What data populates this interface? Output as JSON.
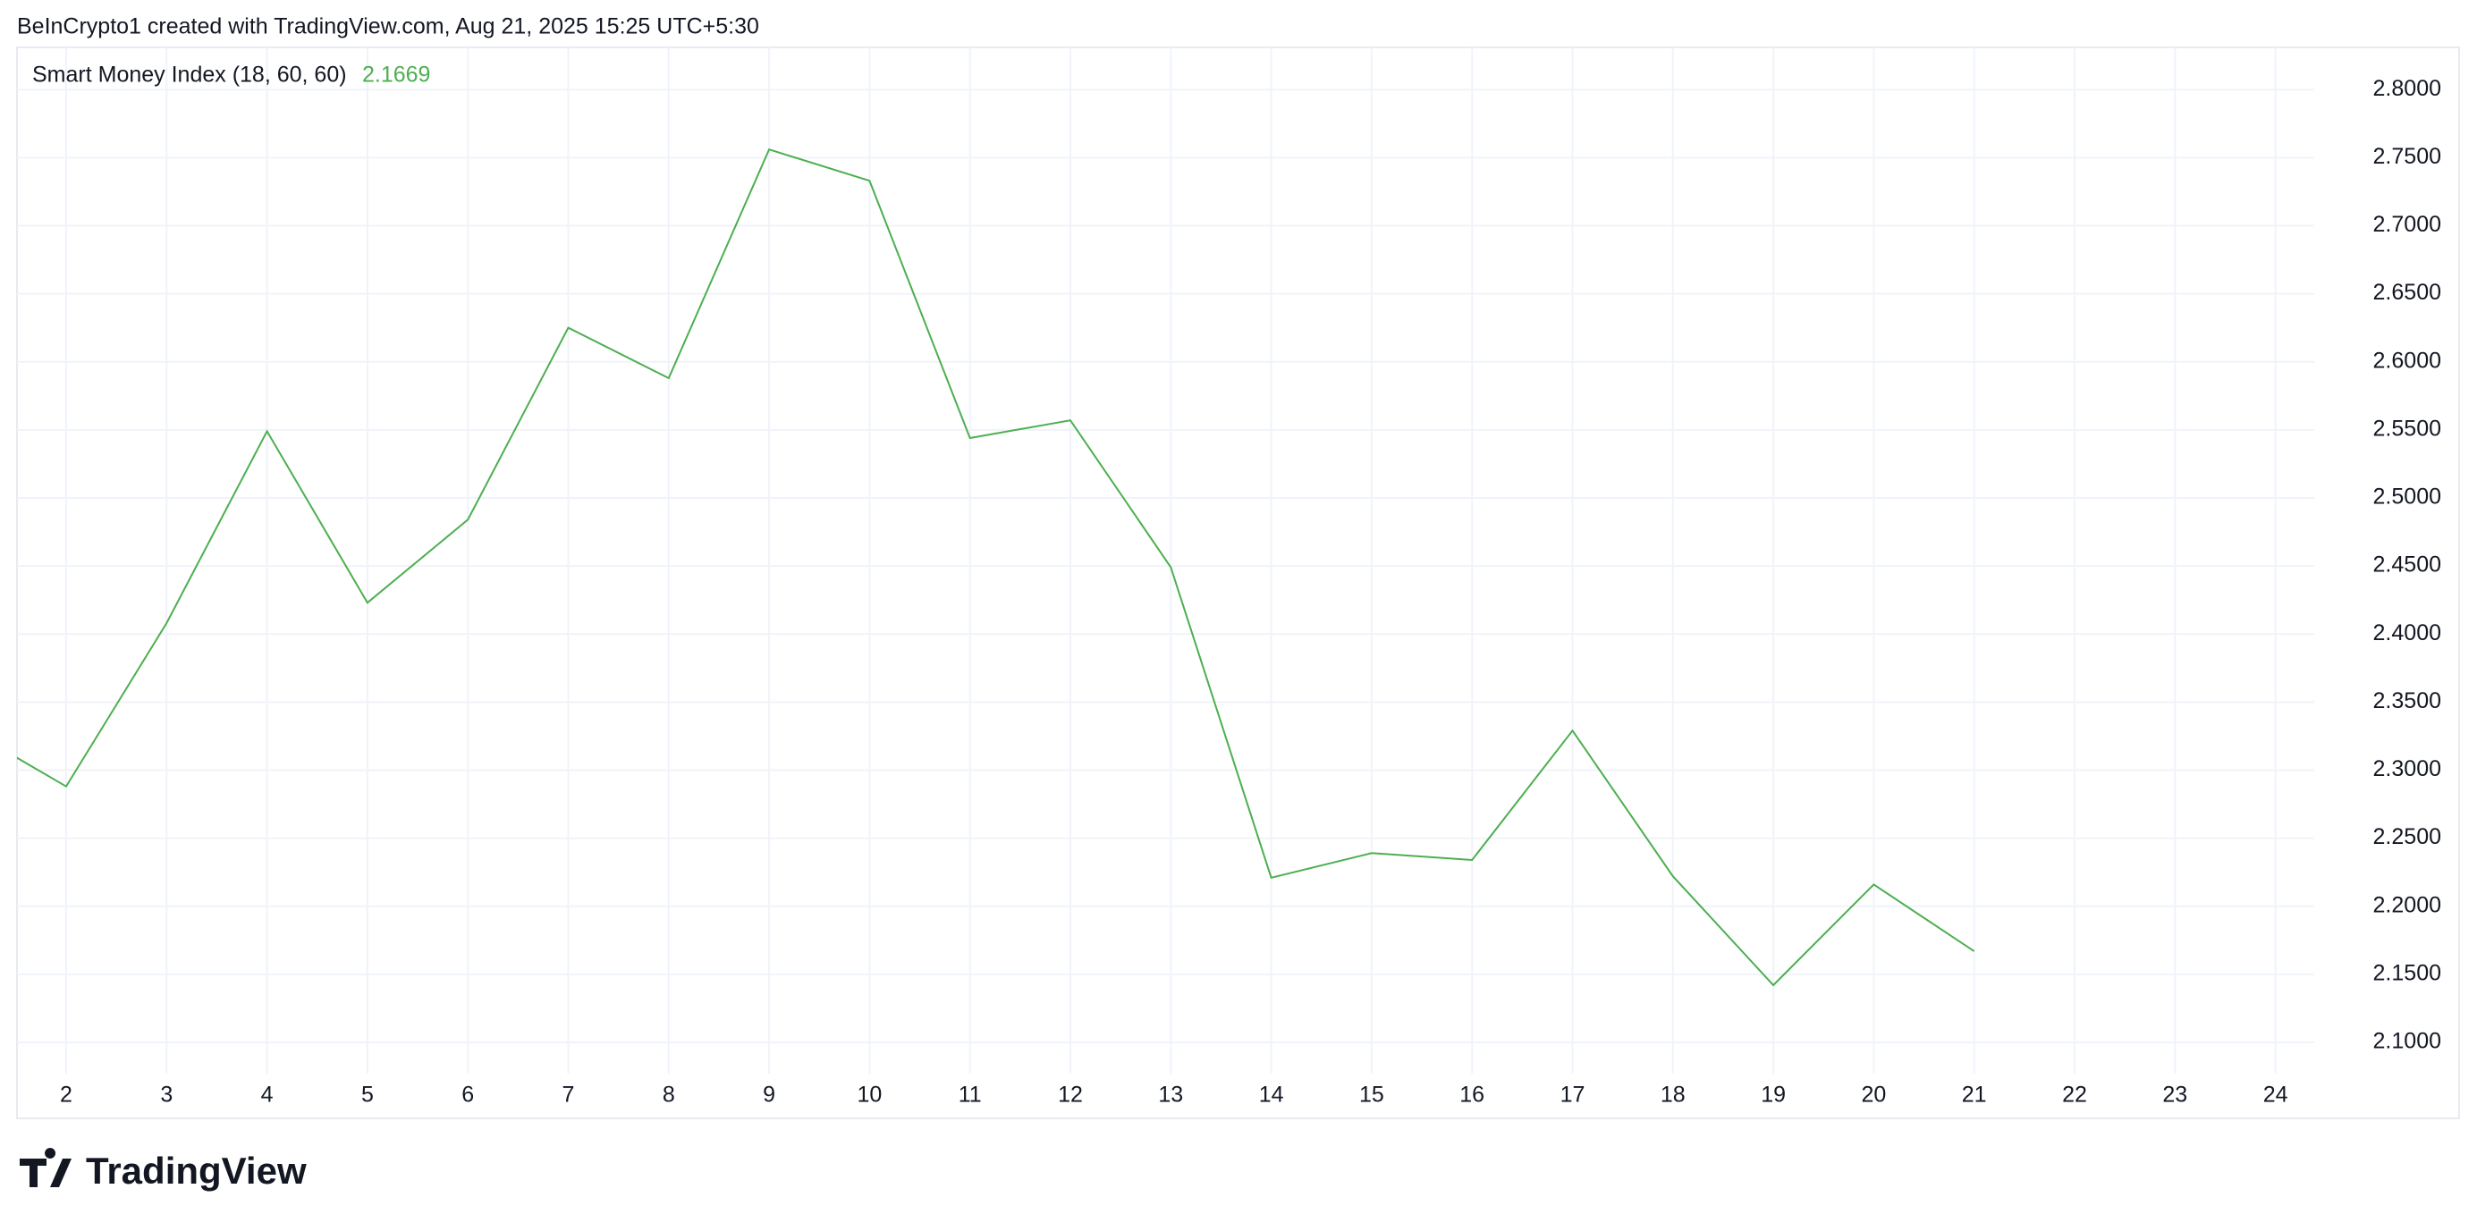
{
  "header": "BeInCrypto1 created with TradingView.com, Aug 21, 2025 15:25 UTC+5:30",
  "logo": "TradingView",
  "chart_data": {
    "type": "line",
    "title": "Smart Money Index (18, 60, 60)",
    "last_value": "2.1669",
    "categories": [
      null,
      "2",
      "3",
      "4",
      "5",
      "6",
      "7",
      "8",
      "9",
      "10",
      "11",
      "12",
      "13",
      "14",
      "15",
      "16",
      "17",
      "18",
      "19",
      "20",
      "21",
      "22",
      "23",
      "24"
    ],
    "series": [
      {
        "name": "Smart Money Index",
        "color": "#4caf50",
        "values": [
          2.331,
          2.288,
          2.408,
          2.549,
          2.423,
          2.484,
          2.625,
          2.588,
          2.756,
          2.733,
          2.544,
          2.557,
          2.449,
          2.221,
          2.239,
          2.234,
          2.329,
          2.222,
          2.142,
          2.216,
          2.1669,
          null,
          null,
          null
        ]
      }
    ],
    "ylim": [
      2.077,
      2.831
    ],
    "yticks": [
      {
        "value": 2.1,
        "label": "2.1000"
      },
      {
        "value": 2.15,
        "label": "2.1500"
      },
      {
        "value": 2.2,
        "label": "2.2000"
      },
      {
        "value": 2.25,
        "label": "2.2500"
      },
      {
        "value": 2.3,
        "label": "2.3000"
      },
      {
        "value": 2.35,
        "label": "2.3500"
      },
      {
        "value": 2.4,
        "label": "2.4000"
      },
      {
        "value": 2.45,
        "label": "2.4500"
      },
      {
        "value": 2.5,
        "label": "2.5000"
      },
      {
        "value": 2.55,
        "label": "2.5500"
      },
      {
        "value": 2.6,
        "label": "2.6000"
      },
      {
        "value": 2.65,
        "label": "2.6500"
      },
      {
        "value": 2.7,
        "label": "2.7000"
      },
      {
        "value": 2.75,
        "label": "2.7500"
      },
      {
        "value": 2.8,
        "label": "2.8000"
      }
    ],
    "grid": true
  }
}
